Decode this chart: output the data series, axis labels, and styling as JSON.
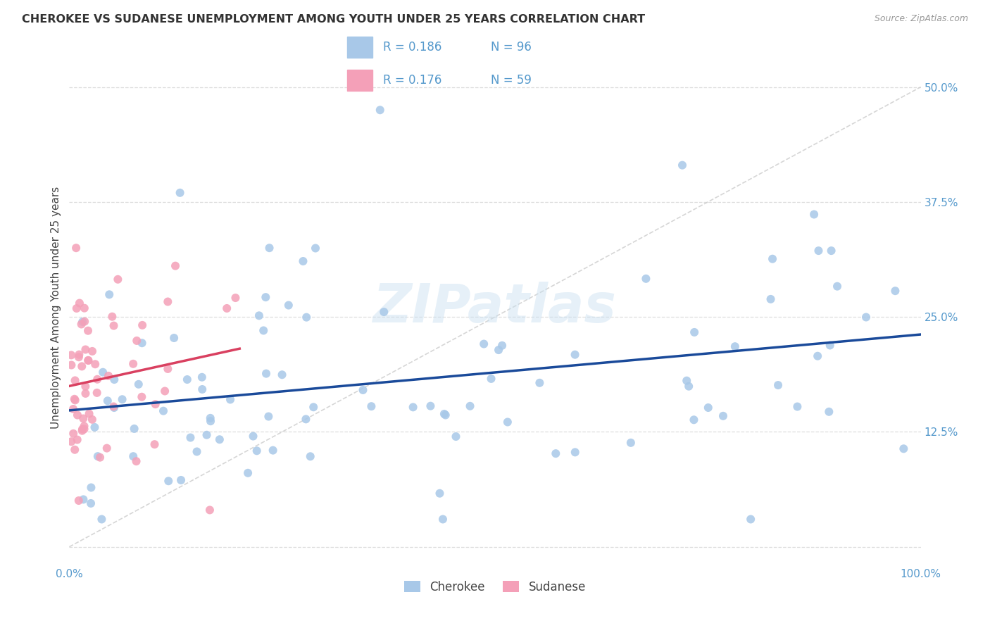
{
  "title": "CHEROKEE VS SUDANESE UNEMPLOYMENT AMONG YOUTH UNDER 25 YEARS CORRELATION CHART",
  "source": "Source: ZipAtlas.com",
  "ylabel": "Unemployment Among Youth under 25 years",
  "xlim": [
    0,
    1.0
  ],
  "ylim": [
    -0.02,
    0.54
  ],
  "cherokee_color": "#a8c8e8",
  "sudanese_color": "#f4a0b8",
  "cherokee_line_color": "#1a4a9a",
  "sudanese_line_color": "#d94060",
  "diagonal_color": "#cccccc",
  "R_cherokee": 0.186,
  "N_cherokee": 96,
  "R_sudanese": 0.176,
  "N_sudanese": 59,
  "background_color": "#ffffff",
  "grid_color": "#dddddd",
  "watermark": "ZIPatlas",
  "tick_color": "#5599cc",
  "title_color": "#333333",
  "source_color": "#999999",
  "ylabel_color": "#444444"
}
